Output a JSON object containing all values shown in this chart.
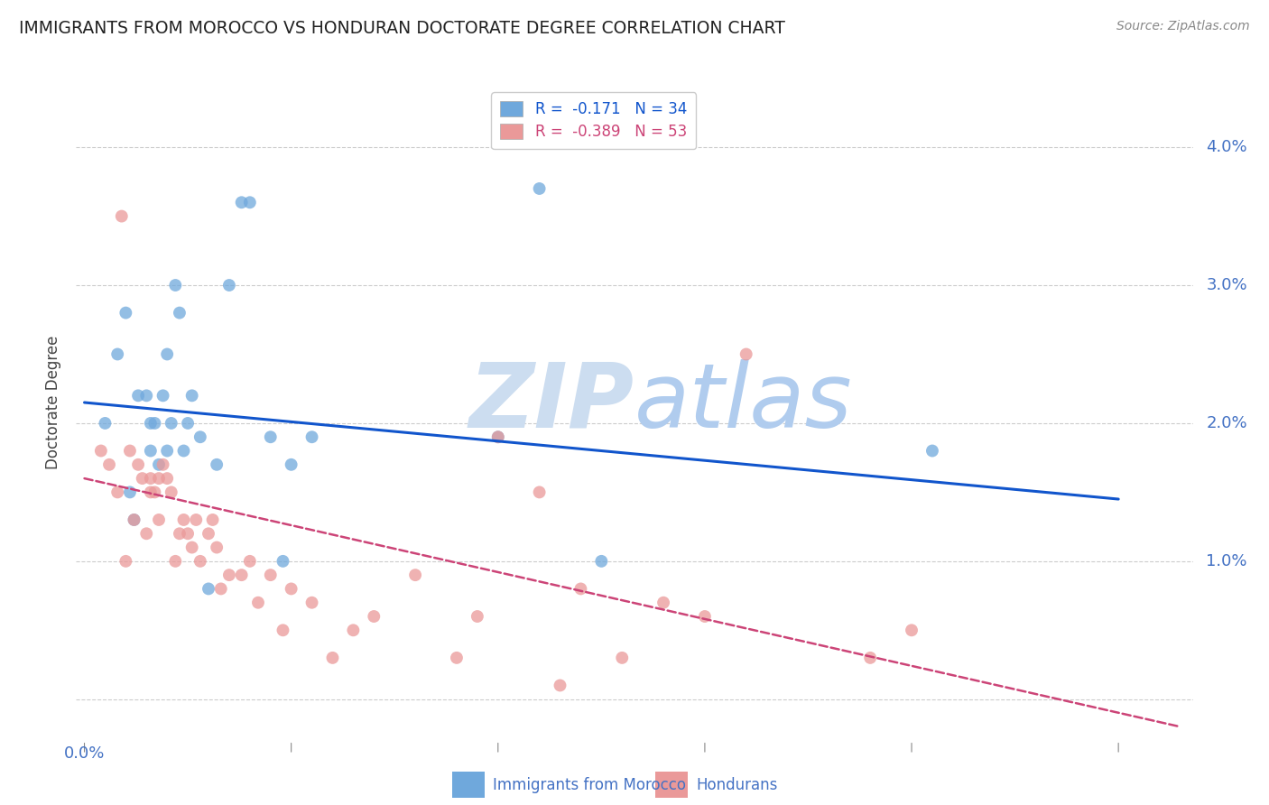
{
  "title": "IMMIGRANTS FROM MOROCCO VS HONDURAN DOCTORATE DEGREE CORRELATION CHART",
  "source": "Source: ZipAtlas.com",
  "ylabel": "Doctorate Degree",
  "y_ticks": [
    0.0,
    0.01,
    0.02,
    0.03,
    0.04
  ],
  "y_tick_labels": [
    "",
    "1.0%",
    "2.0%",
    "3.0%",
    "4.0%"
  ],
  "x_ticks": [
    0.0,
    0.05,
    0.1,
    0.15,
    0.2,
    0.25
  ],
  "xlim": [
    -0.002,
    0.268
  ],
  "ylim": [
    -0.003,
    0.046
  ],
  "legend_blue_r": "-0.171",
  "legend_blue_n": "34",
  "legend_pink_r": "-0.389",
  "legend_pink_n": "53",
  "blue_color": "#6fa8dc",
  "pink_color": "#ea9999",
  "line_blue_color": "#1155cc",
  "line_pink_color": "#cc4477",
  "background_color": "#ffffff",
  "grid_color": "#c0c0c0",
  "title_color": "#222222",
  "axis_label_color": "#4472c4",
  "source_color": "#888888",
  "blue_scatter_x": [
    0.005,
    0.008,
    0.01,
    0.011,
    0.012,
    0.013,
    0.015,
    0.016,
    0.016,
    0.017,
    0.018,
    0.019,
    0.02,
    0.02,
    0.021,
    0.022,
    0.023,
    0.024,
    0.025,
    0.026,
    0.028,
    0.03,
    0.032,
    0.035,
    0.038,
    0.04,
    0.045,
    0.048,
    0.05,
    0.055,
    0.1,
    0.11,
    0.125,
    0.205
  ],
  "blue_scatter_y": [
    0.02,
    0.025,
    0.028,
    0.015,
    0.013,
    0.022,
    0.022,
    0.018,
    0.02,
    0.02,
    0.017,
    0.022,
    0.018,
    0.025,
    0.02,
    0.03,
    0.028,
    0.018,
    0.02,
    0.022,
    0.019,
    0.008,
    0.017,
    0.03,
    0.036,
    0.036,
    0.019,
    0.01,
    0.017,
    0.019,
    0.019,
    0.037,
    0.01,
    0.018
  ],
  "pink_scatter_x": [
    0.004,
    0.006,
    0.008,
    0.009,
    0.01,
    0.011,
    0.012,
    0.013,
    0.014,
    0.015,
    0.016,
    0.016,
    0.017,
    0.018,
    0.018,
    0.019,
    0.02,
    0.021,
    0.022,
    0.023,
    0.024,
    0.025,
    0.026,
    0.027,
    0.028,
    0.03,
    0.031,
    0.032,
    0.033,
    0.035,
    0.038,
    0.04,
    0.042,
    0.045,
    0.048,
    0.05,
    0.055,
    0.06,
    0.065,
    0.07,
    0.08,
    0.09,
    0.095,
    0.1,
    0.11,
    0.115,
    0.12,
    0.13,
    0.14,
    0.15,
    0.16,
    0.19,
    0.2
  ],
  "pink_scatter_y": [
    0.018,
    0.017,
    0.015,
    0.035,
    0.01,
    0.018,
    0.013,
    0.017,
    0.016,
    0.012,
    0.015,
    0.016,
    0.015,
    0.013,
    0.016,
    0.017,
    0.016,
    0.015,
    0.01,
    0.012,
    0.013,
    0.012,
    0.011,
    0.013,
    0.01,
    0.012,
    0.013,
    0.011,
    0.008,
    0.009,
    0.009,
    0.01,
    0.007,
    0.009,
    0.005,
    0.008,
    0.007,
    0.003,
    0.005,
    0.006,
    0.009,
    0.003,
    0.006,
    0.019,
    0.015,
    0.001,
    0.008,
    0.003,
    0.007,
    0.006,
    0.025,
    0.003,
    0.005
  ],
  "blue_line_x": [
    0.0,
    0.25
  ],
  "blue_line_y": [
    0.0215,
    0.0145
  ],
  "pink_line_x": [
    0.0,
    0.265
  ],
  "pink_line_y": [
    0.016,
    -0.002
  ],
  "watermark_zip": "ZIP",
  "watermark_atlas": "atlas",
  "watermark_color": "#ccddf0",
  "legend_fontsize": 12,
  "title_fontsize": 13.5,
  "marker_size": 100
}
